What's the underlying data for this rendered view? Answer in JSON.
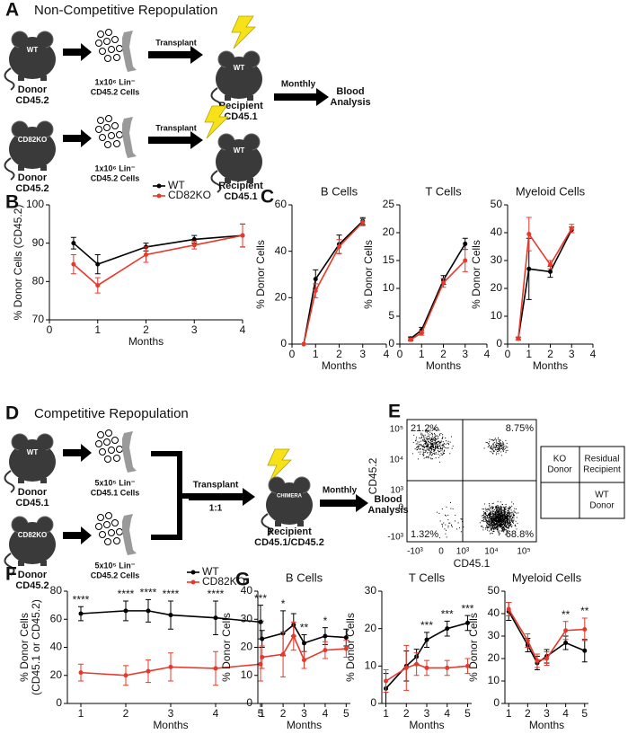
{
  "panel_labels": [
    "A",
    "B",
    "C",
    "D",
    "E",
    "F",
    "G"
  ],
  "panel_a": {
    "title": "Non-Competitive Repopulation",
    "rows": [
      {
        "donor_mouse": "WT",
        "donor": [
          "Donor",
          "CD45.2"
        ],
        "cells": [
          "1x10⁶ Lin⁻",
          "CD45.2 Cells"
        ],
        "transplant": "Transplant",
        "recipient_mouse": "WT",
        "recipient": [
          "Recipient",
          "CD45.1"
        ]
      },
      {
        "donor_mouse": "CD82KO",
        "donor": [
          "Donor",
          "CD45.2"
        ],
        "cells": [
          "1x10⁶ Lin⁻",
          "CD45.2 Cells"
        ],
        "transplant": "Transplant",
        "recipient_mouse": "WT",
        "recipient": [
          "Recipient",
          "CD45.1"
        ]
      }
    ],
    "monthly": "Monthly",
    "analysis": [
      "Blood",
      "Analysis"
    ]
  },
  "panel_d": {
    "title": "Competitive Repopulation",
    "rows": [
      {
        "donor_mouse": "WT",
        "donor": [
          "Donor",
          "CD45.1"
        ],
        "cells": [
          "5x10⁵ Lin⁻",
          "CD45.1 Cells"
        ]
      },
      {
        "donor_mouse": "CD82KO",
        "donor": [
          "Donor",
          "CD45.2"
        ],
        "cells": [
          "5x10⁵ Lin⁻",
          "CD45.2 Cells"
        ]
      }
    ],
    "transplant": "Transplant",
    "ratio": "1:1",
    "recipient_mouse": "CHIMERA",
    "recipient": [
      "Recipient",
      "CD45.1/CD45.2"
    ],
    "monthly": "Monthly",
    "analysis": [
      "Blood",
      "Analysis"
    ]
  },
  "panel_e": {
    "xlabel": "CD45.1",
    "ylabel": "CD45.2",
    "yticks": [
      "10⁵",
      "10⁴",
      "10³",
      "0",
      "-10³"
    ],
    "xticks": [
      "-10³",
      "0",
      "10³",
      "10⁴",
      "10⁵"
    ],
    "quadrants": {
      "top_left": "21.2%",
      "top_right": "8.75%",
      "bottom_left": "1.32%",
      "bottom_right": "68.8%"
    },
    "key": {
      "top_left": [
        "KO",
        "Donor"
      ],
      "top_right": [
        "Residual",
        "Recipient"
      ],
      "bottom_right": [
        "WT",
        "Donor"
      ]
    }
  },
  "chart_data": [
    {
      "type": "line",
      "ylabel": [
        "% Donor Cells (CD45.2)"
      ],
      "xlabel": "Months",
      "x": [
        0.5,
        1,
        2,
        3,
        4
      ],
      "xlim": [
        0,
        4
      ],
      "xticks": [
        0,
        1,
        2,
        3,
        4
      ],
      "ylim": [
        70,
        100
      ],
      "yticks": [
        70,
        80,
        90,
        100
      ],
      "series": [
        {
          "name": "WT",
          "color": "#000000",
          "values": [
            90,
            84.5,
            89,
            91,
            92
          ],
          "errors": [
            1.5,
            2.5,
            1,
            1,
            3
          ]
        },
        {
          "name": "CD82KO",
          "color": "#e8382b",
          "values": [
            84.5,
            79,
            87,
            89.5,
            92
          ],
          "errors": [
            2.5,
            2,
            2,
            1,
            3
          ]
        }
      ]
    },
    {
      "type": "line",
      "title": "B Cells",
      "ylabel": [
        "% Donor Cells"
      ],
      "xlabel": "Months",
      "x": [
        0.5,
        1,
        2,
        3
      ],
      "xlim": [
        0,
        4
      ],
      "xticks": [
        0,
        1,
        2,
        3,
        4
      ],
      "ylim": [
        0,
        60
      ],
      "yticks": [
        0,
        20,
        40,
        60
      ],
      "series": [
        {
          "color": "#000000",
          "values": [
            0,
            28,
            43,
            53
          ],
          "errors": [
            0,
            4,
            4,
            1.5
          ]
        },
        {
          "color": "#e8382b",
          "values": [
            0,
            23,
            42,
            52.5
          ],
          "errors": [
            0,
            3,
            3,
            1.5
          ]
        }
      ]
    },
    {
      "type": "line",
      "title": "T Cells",
      "ylabel": [
        "% Donor Cells"
      ],
      "xlabel": "Months",
      "x": [
        0.5,
        1,
        2,
        3
      ],
      "xlim": [
        0,
        4
      ],
      "xticks": [
        0,
        1,
        2,
        3,
        4
      ],
      "ylim": [
        0,
        25
      ],
      "yticks": [
        0,
        5,
        10,
        15,
        20,
        25
      ],
      "series": [
        {
          "color": "#000000",
          "values": [
            1,
            2.5,
            11.5,
            18
          ],
          "errors": [
            0.3,
            0.5,
            0.8,
            1
          ]
        },
        {
          "color": "#e8382b",
          "values": [
            0.8,
            2,
            11,
            15
          ],
          "errors": [
            0.3,
            0.4,
            0.8,
            2
          ]
        }
      ]
    },
    {
      "type": "line",
      "title": "Myeloid Cells",
      "ylabel": [
        "% Donor Cells"
      ],
      "xlabel": "Months",
      "x": [
        0.5,
        1,
        2,
        3
      ],
      "xlim": [
        0,
        4
      ],
      "xticks": [
        0,
        1,
        2,
        3,
        4
      ],
      "ylim": [
        0,
        50
      ],
      "yticks": [
        0,
        10,
        20,
        30,
        40,
        50
      ],
      "series": [
        {
          "color": "#000000",
          "values": [
            2,
            27,
            26,
            41
          ],
          "errors": [
            0.5,
            11,
            2,
            1
          ]
        },
        {
          "color": "#e8382b",
          "values": [
            2,
            39.5,
            28.5,
            41.5
          ],
          "errors": [
            0.5,
            6,
            1.5,
            1.5
          ]
        }
      ]
    },
    {
      "type": "line",
      "ylabel": [
        "% Donor Cells",
        "(CD45.1 or CD45.2)"
      ],
      "xlabel": "Months",
      "x": [
        1,
        2,
        2.5,
        3,
        4,
        5
      ],
      "xlim": [
        0.7,
        5.3
      ],
      "xticks": [
        1,
        2,
        3,
        4,
        5
      ],
      "ylim": [
        0,
        80
      ],
      "yticks": [
        0,
        20,
        40,
        60,
        80
      ],
      "annotations": [
        "****",
        "****",
        "****",
        "****",
        "****",
        "***"
      ],
      "series": [
        {
          "name": "WT",
          "color": "#000000",
          "values": [
            64,
            66,
            66,
            63,
            61,
            58
          ],
          "errors": [
            5,
            7,
            8,
            10,
            12,
            12
          ]
        },
        {
          "name": "CD82KO",
          "color": "#e8382b",
          "values": [
            22,
            20,
            23,
            26,
            25,
            28
          ],
          "errors": [
            6,
            7,
            8,
            10,
            12,
            12
          ]
        }
      ]
    },
    {
      "type": "line",
      "title": "B Cells",
      "ylabel": [
        "% Donor Cells"
      ],
      "xlabel": "Months",
      "x": [
        1,
        2,
        2.5,
        3,
        4,
        5
      ],
      "xlim": [
        0.8,
        5.2
      ],
      "xticks": [
        1,
        2,
        3,
        4,
        5
      ],
      "ylim": [
        0,
        40
      ],
      "yticks": [
        0,
        10,
        20,
        30,
        40
      ],
      "annotations": [
        "*",
        "*",
        null,
        "**",
        "*",
        null
      ],
      "series": [
        {
          "color": "#000000",
          "values": [
            23,
            25,
            28,
            21.5,
            24,
            23.5
          ],
          "errors": [
            3,
            8,
            4,
            3,
            3,
            3
          ]
        },
        {
          "color": "#e8382b",
          "values": [
            16.5,
            17.5,
            24,
            15.5,
            19,
            19.5
          ],
          "errors": [
            4,
            8,
            5,
            3,
            3,
            3
          ]
        }
      ]
    },
    {
      "type": "line",
      "title": "T Cells",
      "ylabel": [
        "% Donor Cells"
      ],
      "xlabel": "Months",
      "x": [
        1,
        2,
        2.5,
        3,
        4,
        5
      ],
      "xlim": [
        0.8,
        5.2
      ],
      "xticks": [
        1,
        2,
        3,
        4,
        5
      ],
      "ylim": [
        0,
        30
      ],
      "yticks": [
        0,
        10,
        20,
        30
      ],
      "annotations": [
        null,
        null,
        null,
        "***",
        "***",
        "***"
      ],
      "series": [
        {
          "color": "#000000",
          "values": [
            4,
            10,
            12.5,
            17,
            20,
            21.5
          ],
          "errors": [
            4,
            4,
            2,
            2,
            2,
            2
          ]
        },
        {
          "color": "#e8382b",
          "values": [
            6,
            9.5,
            10.5,
            9.5,
            9.5,
            10
          ],
          "errors": [
            3,
            6,
            3,
            2,
            2,
            2
          ]
        }
      ]
    },
    {
      "type": "line",
      "title": "Myeloid Cells",
      "ylabel": [
        "% Donor Cells"
      ],
      "xlabel": "Months",
      "x": [
        1,
        2,
        2.5,
        3,
        4,
        5
      ],
      "xlim": [
        0.8,
        5.2
      ],
      "xticks": [
        1,
        2,
        3,
        4,
        5
      ],
      "ylim": [
        0,
        50
      ],
      "yticks": [
        0,
        10,
        20,
        30,
        40,
        50
      ],
      "annotations": [
        null,
        null,
        null,
        null,
        "**",
        "**"
      ],
      "series": [
        {
          "color": "#000000",
          "values": [
            41,
            26,
            18,
            21,
            27,
            23.5
          ],
          "errors": [
            4,
            3,
            3,
            3,
            3,
            5
          ]
        },
        {
          "color": "#e8382b",
          "values": [
            42,
            28,
            19,
            20,
            32.5,
            33
          ],
          "errors": [
            3,
            3,
            3,
            3,
            4,
            5
          ]
        }
      ]
    }
  ]
}
